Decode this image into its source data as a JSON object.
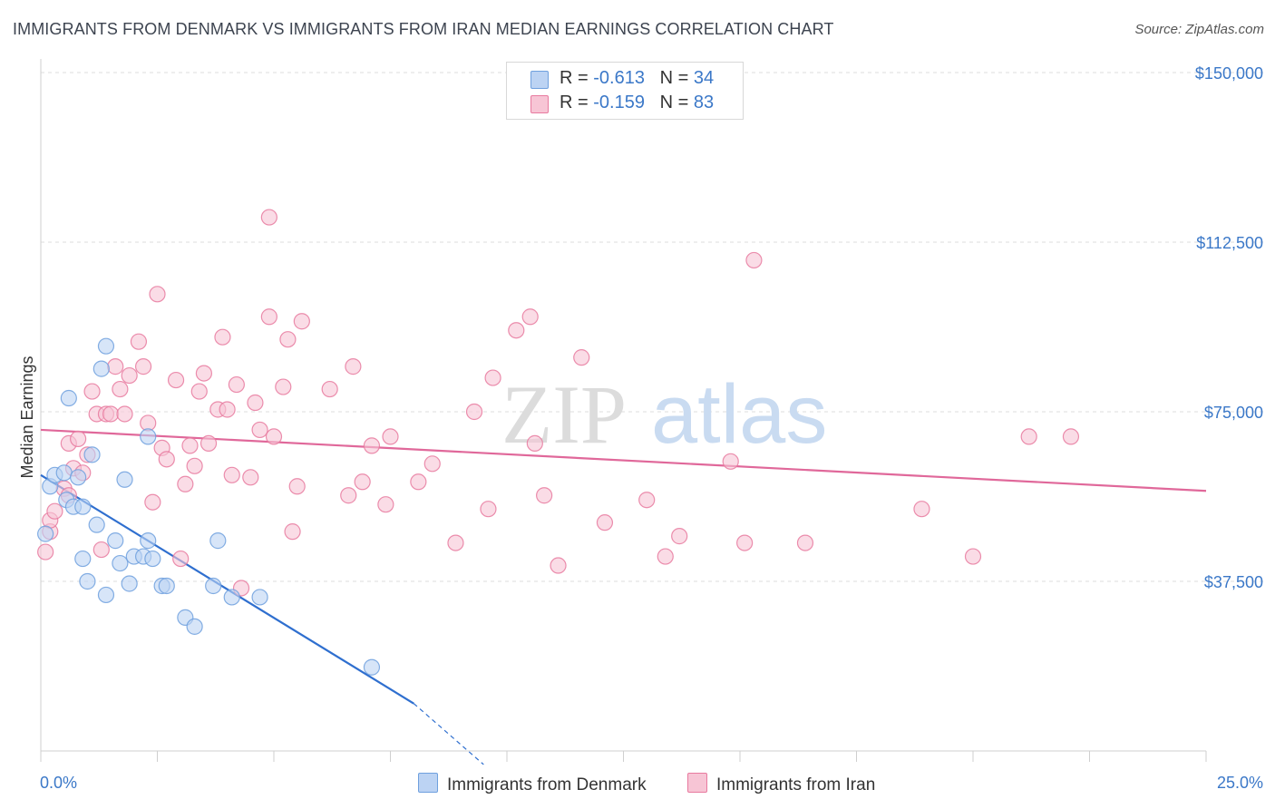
{
  "title": "IMMIGRANTS FROM DENMARK VS IMMIGRANTS FROM IRAN MEDIAN EARNINGS CORRELATION CHART",
  "source": "Source: ZipAtlas.com",
  "watermark": {
    "zip": "ZIP",
    "atlas": "atlas"
  },
  "colors": {
    "denmark": "#6fa0de",
    "denmark_fill": "#bcd3f3",
    "iran": "#e87a9f",
    "iran_fill": "#f7c5d5",
    "denmark_line": "#2f6fcf",
    "iran_line": "#e0689a",
    "accent": "#3b78c8"
  },
  "legend": {
    "rows": [
      {
        "r_label": "R =",
        "r_value": "-0.613",
        "n_label": "N =",
        "n_value": "34"
      },
      {
        "r_label": "R =",
        "r_value": "-0.159",
        "n_label": "N =",
        "n_value": "83"
      }
    ]
  },
  "bottom_legend": [
    "Immigrants from Denmark",
    "Immigrants from Iran"
  ],
  "chart_data": {
    "type": "scatter",
    "title": "IMMIGRANTS FROM DENMARK VS IMMIGRANTS FROM IRAN MEDIAN EARNINGS CORRELATION CHART",
    "xlabel": "",
    "ylabel": "Median Earnings",
    "xlim": [
      0,
      25
    ],
    "ylim": [
      0,
      153000
    ],
    "y_ticks": [
      37500,
      75000,
      112500,
      150000
    ],
    "y_tick_labels": [
      "$37,500",
      "$75,000",
      "$112,500",
      "$150,000"
    ],
    "x_tick_labels": [
      "0.0%",
      "25.0%"
    ],
    "grid": true,
    "legend_position": "top-center",
    "series": [
      {
        "name": "Immigrants from Denmark",
        "points": [
          [
            0.2,
            58500
          ],
          [
            0.3,
            61000
          ],
          [
            0.5,
            61500
          ],
          [
            0.55,
            55500
          ],
          [
            0.6,
            78000
          ],
          [
            0.7,
            54000
          ],
          [
            0.8,
            60500
          ],
          [
            0.9,
            54000
          ],
          [
            0.9,
            42500
          ],
          [
            1.0,
            37500
          ],
          [
            1.1,
            65500
          ],
          [
            1.2,
            50000
          ],
          [
            1.3,
            84500
          ],
          [
            1.4,
            34500
          ],
          [
            1.4,
            89500
          ],
          [
            1.6,
            46500
          ],
          [
            1.7,
            41500
          ],
          [
            1.8,
            60000
          ],
          [
            1.9,
            37000
          ],
          [
            2.0,
            43000
          ],
          [
            2.2,
            43000
          ],
          [
            2.3,
            46500
          ],
          [
            2.3,
            69500
          ],
          [
            2.4,
            42500
          ],
          [
            2.6,
            36500
          ],
          [
            2.7,
            36500
          ],
          [
            3.1,
            29500
          ],
          [
            3.3,
            27500
          ],
          [
            3.7,
            36500
          ],
          [
            3.8,
            46500
          ],
          [
            4.1,
            34000
          ],
          [
            4.7,
            34000
          ],
          [
            7.1,
            18500
          ],
          [
            0.1,
            48000
          ]
        ],
        "trend": {
          "x": [
            0,
            8.0
          ],
          "y": [
            61000,
            10500
          ],
          "dashed_to": [
            9.5,
            -3000
          ]
        }
      },
      {
        "name": "Immigrants from Iran",
        "points": [
          [
            0.1,
            44000
          ],
          [
            0.2,
            48500
          ],
          [
            0.2,
            51000
          ],
          [
            0.3,
            53000
          ],
          [
            0.5,
            58000
          ],
          [
            0.6,
            56500
          ],
          [
            0.6,
            68000
          ],
          [
            0.7,
            62500
          ],
          [
            0.8,
            69000
          ],
          [
            0.9,
            61500
          ],
          [
            1.0,
            65500
          ],
          [
            1.1,
            79500
          ],
          [
            1.2,
            74500
          ],
          [
            1.3,
            44500
          ],
          [
            1.4,
            74500
          ],
          [
            1.5,
            74500
          ],
          [
            1.6,
            85000
          ],
          [
            1.7,
            80000
          ],
          [
            1.8,
            74500
          ],
          [
            1.9,
            83000
          ],
          [
            2.1,
            90500
          ],
          [
            2.2,
            85000
          ],
          [
            2.3,
            72500
          ],
          [
            2.4,
            55000
          ],
          [
            2.5,
            101000
          ],
          [
            2.6,
            67000
          ],
          [
            2.7,
            64500
          ],
          [
            2.9,
            82000
          ],
          [
            3.0,
            42500
          ],
          [
            3.1,
            59000
          ],
          [
            3.2,
            67500
          ],
          [
            3.3,
            63000
          ],
          [
            3.4,
            79500
          ],
          [
            3.5,
            83500
          ],
          [
            3.6,
            68000
          ],
          [
            3.8,
            75500
          ],
          [
            3.9,
            91500
          ],
          [
            4.0,
            75500
          ],
          [
            4.1,
            61000
          ],
          [
            4.2,
            81000
          ],
          [
            4.3,
            36000
          ],
          [
            4.5,
            60500
          ],
          [
            4.6,
            77000
          ],
          [
            4.7,
            71000
          ],
          [
            4.9,
            96000
          ],
          [
            4.9,
            118000
          ],
          [
            5.0,
            69500
          ],
          [
            5.2,
            80500
          ],
          [
            5.3,
            91000
          ],
          [
            5.4,
            48500
          ],
          [
            5.5,
            58500
          ],
          [
            5.6,
            95000
          ],
          [
            6.2,
            80000
          ],
          [
            6.6,
            56500
          ],
          [
            6.7,
            85000
          ],
          [
            6.9,
            59500
          ],
          [
            7.1,
            67500
          ],
          [
            7.4,
            54500
          ],
          [
            7.5,
            69500
          ],
          [
            8.1,
            59500
          ],
          [
            8.4,
            63500
          ],
          [
            8.9,
            46000
          ],
          [
            9.3,
            75000
          ],
          [
            9.6,
            53500
          ],
          [
            9.7,
            82500
          ],
          [
            10.2,
            93000
          ],
          [
            10.5,
            96000
          ],
          [
            10.6,
            68000
          ],
          [
            10.8,
            56500
          ],
          [
            11.1,
            41000
          ],
          [
            11.6,
            87000
          ],
          [
            12.1,
            50500
          ],
          [
            13.0,
            55500
          ],
          [
            13.4,
            43000
          ],
          [
            13.7,
            47500
          ],
          [
            14.8,
            64000
          ],
          [
            15.1,
            46000
          ],
          [
            15.3,
            108500
          ],
          [
            16.4,
            46000
          ],
          [
            18.9,
            53500
          ],
          [
            20.0,
            43000
          ],
          [
            21.2,
            69500
          ],
          [
            22.1,
            69500
          ]
        ],
        "trend": {
          "x": [
            0,
            25
          ],
          "y": [
            71000,
            57500
          ]
        }
      }
    ]
  }
}
